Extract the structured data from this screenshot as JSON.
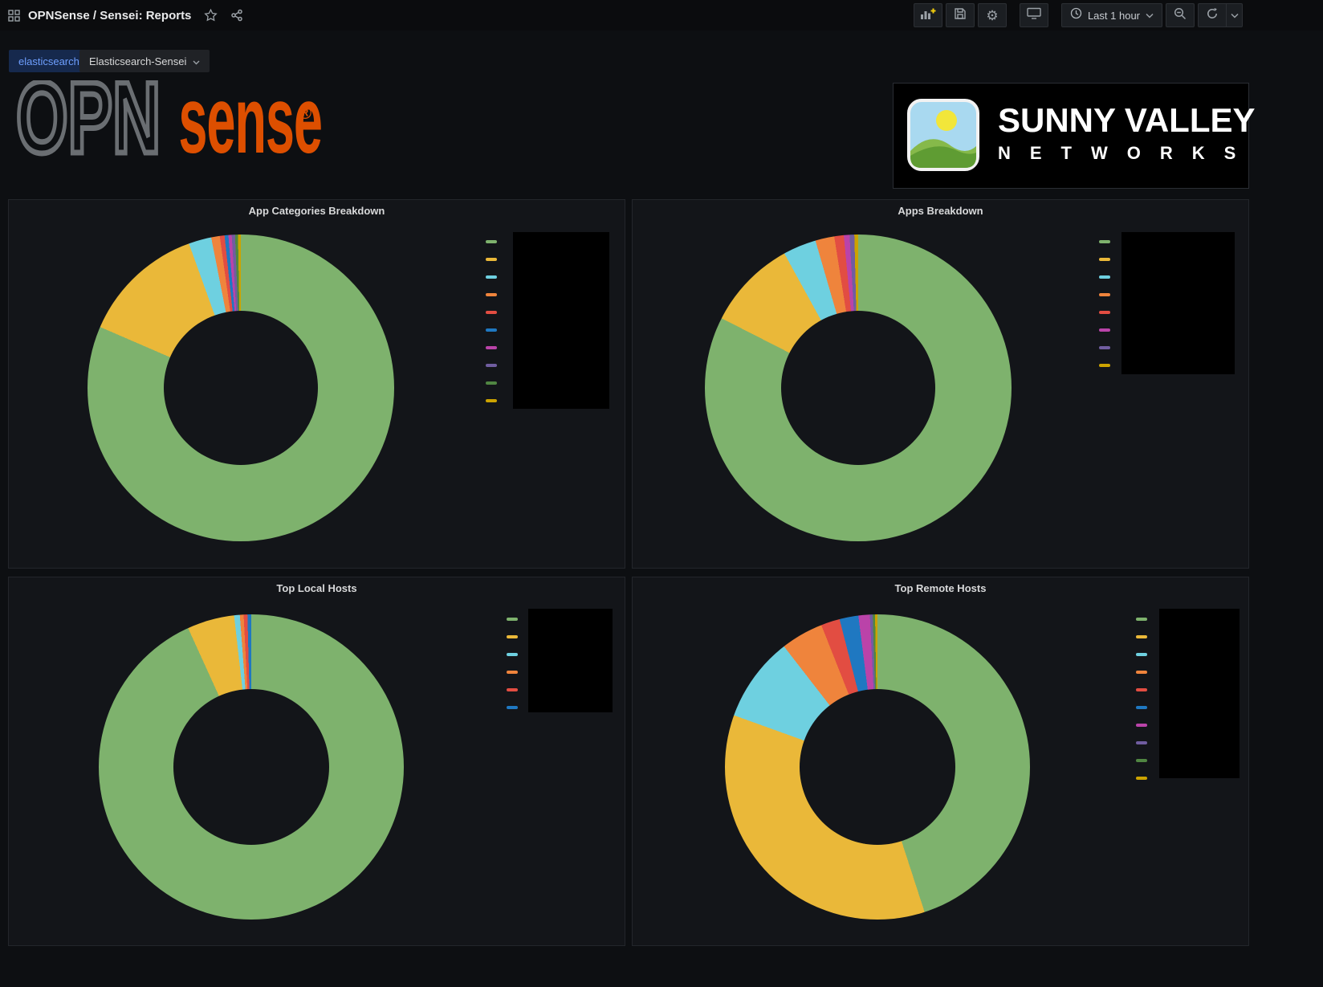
{
  "navbar": {
    "title": "OPNSense / Sensei: Reports",
    "time_label": "Last 1 hour"
  },
  "icons": {
    "gear": "⚙"
  },
  "variables": {
    "name": "elasticsearch",
    "value": "Elasticsearch-Sensei"
  },
  "logos": {
    "opnsense": {
      "part_outline": "OPN",
      "part_solid": "sense",
      "registered": "®",
      "orange": "#DD4F00",
      "gray": "#6a6e72"
    },
    "sunny_valley": {
      "title": "SUNNY VALLEY",
      "subtitle": "NETWORKS",
      "icon_colors": {
        "sky": "#A9D9F0",
        "sun": "#F2E63A",
        "hill_light": "#86B94A",
        "hill_dark": "#5F9C33"
      }
    }
  },
  "chart_data": [
    {
      "type": "pie",
      "donut": true,
      "title": "App Categories Breakdown",
      "legend_position": "right",
      "labels_redacted": true,
      "unit": "percent",
      "series": [
        {
          "color": "#7EB26D",
          "value": 81.5
        },
        {
          "color": "#EAB839",
          "value": 13.0
        },
        {
          "color": "#6ED0E0",
          "value": 2.4
        },
        {
          "color": "#EF843C",
          "value": 0.9
        },
        {
          "color": "#E24D42",
          "value": 0.5
        },
        {
          "color": "#1F78C1",
          "value": 0.4
        },
        {
          "color": "#BA43A9",
          "value": 0.35
        },
        {
          "color": "#705DA0",
          "value": 0.35
        },
        {
          "color": "#508642",
          "value": 0.3
        },
        {
          "color": "#CCA300",
          "value": 0.3
        }
      ]
    },
    {
      "type": "pie",
      "donut": true,
      "title": "Apps Breakdown",
      "legend_position": "right",
      "labels_redacted": true,
      "unit": "percent",
      "series": [
        {
          "color": "#7EB26D",
          "value": 82.5
        },
        {
          "color": "#EAB839",
          "value": 9.5
        },
        {
          "color": "#6ED0E0",
          "value": 3.5
        },
        {
          "color": "#EF843C",
          "value": 2.0
        },
        {
          "color": "#E24D42",
          "value": 1.0
        },
        {
          "color": "#BA43A9",
          "value": 0.6
        },
        {
          "color": "#705DA0",
          "value": 0.5
        },
        {
          "color": "#CCA300",
          "value": 0.4
        }
      ]
    },
    {
      "type": "pie",
      "donut": true,
      "title": "Top Local Hosts",
      "legend_position": "right",
      "labels_redacted": true,
      "unit": "percent",
      "series": [
        {
          "color": "#7EB26D",
          "value": 93.2
        },
        {
          "color": "#EAB839",
          "value": 5.0
        },
        {
          "color": "#6ED0E0",
          "value": 0.6
        },
        {
          "color": "#EF843C",
          "value": 0.4
        },
        {
          "color": "#E24D42",
          "value": 0.4
        },
        {
          "color": "#1F78C1",
          "value": 0.4
        }
      ]
    },
    {
      "type": "pie",
      "donut": true,
      "title": "Top Remote Hosts",
      "legend_position": "right",
      "labels_redacted": true,
      "unit": "percent",
      "series": [
        {
          "color": "#7EB26D",
          "value": 45.0
        },
        {
          "color": "#EAB839",
          "value": 35.5
        },
        {
          "color": "#6ED0E0",
          "value": 9.0
        },
        {
          "color": "#EF843C",
          "value": 4.5
        },
        {
          "color": "#E24D42",
          "value": 2.0
        },
        {
          "color": "#1F78C1",
          "value": 2.0
        },
        {
          "color": "#BA43A9",
          "value": 1.2
        },
        {
          "color": "#705DA0",
          "value": 0.3
        },
        {
          "color": "#508642",
          "value": 0.25
        },
        {
          "color": "#CCA300",
          "value": 0.25
        }
      ]
    }
  ]
}
